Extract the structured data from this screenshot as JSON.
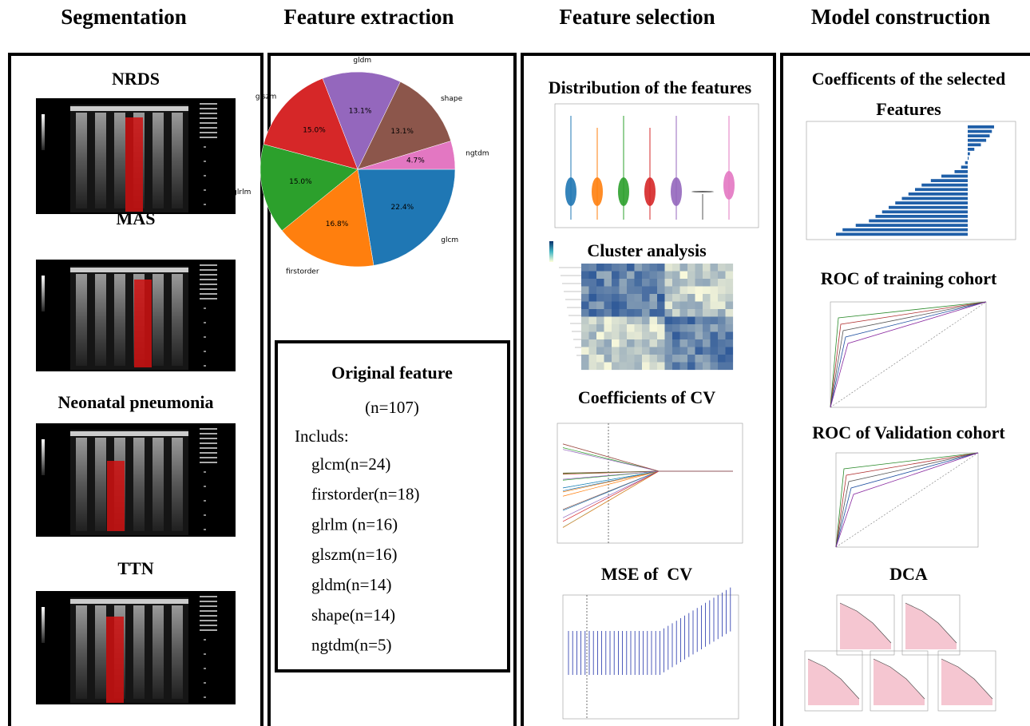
{
  "headers": [
    "Segmentation",
    "Feature extraction",
    "Feature selection",
    "Model construction"
  ],
  "segmentation": {
    "panels": [
      "NRDS",
      "MAS",
      "Neonatal pneumonia",
      "TTN"
    ]
  },
  "feature_extraction": {
    "pie": {
      "labels": [
        "glcm",
        "firstorder",
        "glrlm",
        "glszm",
        "gldm",
        "shape",
        "ngtdm"
      ],
      "values": [
        22.4,
        16.8,
        15.0,
        15.0,
        13.1,
        13.1,
        4.7
      ],
      "value_labels": [
        "22.4%",
        "16.8%",
        "15.0%",
        "15.0%",
        "13.1%",
        "13.1%",
        "4.7%"
      ],
      "colors": [
        "#1f77b4",
        "#ff7f0e",
        "#2ca02c",
        "#d62728",
        "#9467bd",
        "#8c564b",
        "#e377c2"
      ]
    },
    "summary": {
      "title": "Original feature",
      "total": "(n=107)",
      "intro": "Includs:",
      "items": [
        "glcm(n=24)",
        "firstorder(n=18)",
        "glrlm (n=16)",
        "glszm(n=16)",
        "gldm(n=14)",
        "shape(n=14)",
        "ngtdm(n=5)"
      ]
    }
  },
  "feature_selection": {
    "panels": [
      "Distribution of the features",
      "Cluster analysis",
      "Coefficients of CV",
      "MSE of  CV"
    ]
  },
  "model_construction": {
    "panels": [
      "Coefficents of the selected",
      "Features",
      "ROC of training cohort",
      "ROC of Validation cohort",
      "DCA"
    ]
  }
}
